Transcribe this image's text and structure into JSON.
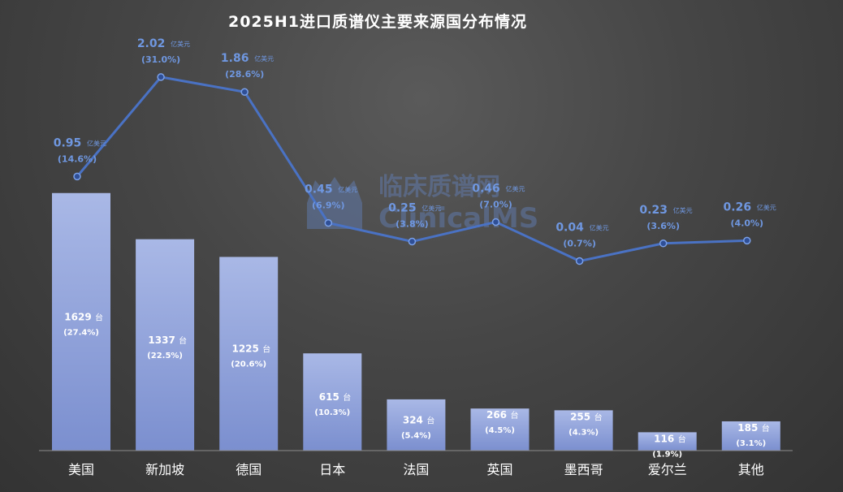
{
  "chart_data": {
    "type": "bar",
    "title": "2025H1进口质谱仪主要来源国分布情况",
    "categories": [
      "美国",
      "新加坡",
      "德国",
      "日本",
      "法国",
      "英国",
      "墨西哥",
      "爱尔兰",
      "其他"
    ],
    "series": [
      {
        "type": "bar",
        "unit": "台",
        "values": [
          1629,
          1337,
          1225,
          615,
          324,
          266,
          255,
          116,
          185
        ],
        "percent_labels": [
          "(27.4%)",
          "(22.5%)",
          "(20.6%)",
          "(10.3%)",
          "(5.4%)",
          "(4.5%)",
          "(4.3%)",
          "(1.9%)",
          "(3.1%)"
        ]
      },
      {
        "type": "line",
        "unit": "亿美元",
        "values": [
          0.95,
          2.02,
          1.86,
          0.45,
          0.25,
          0.46,
          0.04,
          0.23,
          0.26
        ],
        "percent_labels": [
          "(14.6%)",
          "(31.0%)",
          "(28.6%)",
          "(6.9%)",
          "(3.8%)",
          "(7.0%)",
          "(0.7%)",
          "(3.6%)",
          "(4.0%)"
        ]
      }
    ],
    "bar_ylim": [
      0,
      1900
    ],
    "line_ylim": [
      -2.0,
      2.5
    ],
    "grid": false,
    "legend": "none"
  },
  "watermark": {
    "cn": "临床质谱网",
    "en": "ClinicalMS"
  },
  "colors": {
    "bar_top": "#a9b8e6",
    "bar_bottom": "#7b8fcf",
    "line": "#4a72c4",
    "line_label": "#6f97e0",
    "text": "#ffffff",
    "axis": "#8c8c8c"
  }
}
